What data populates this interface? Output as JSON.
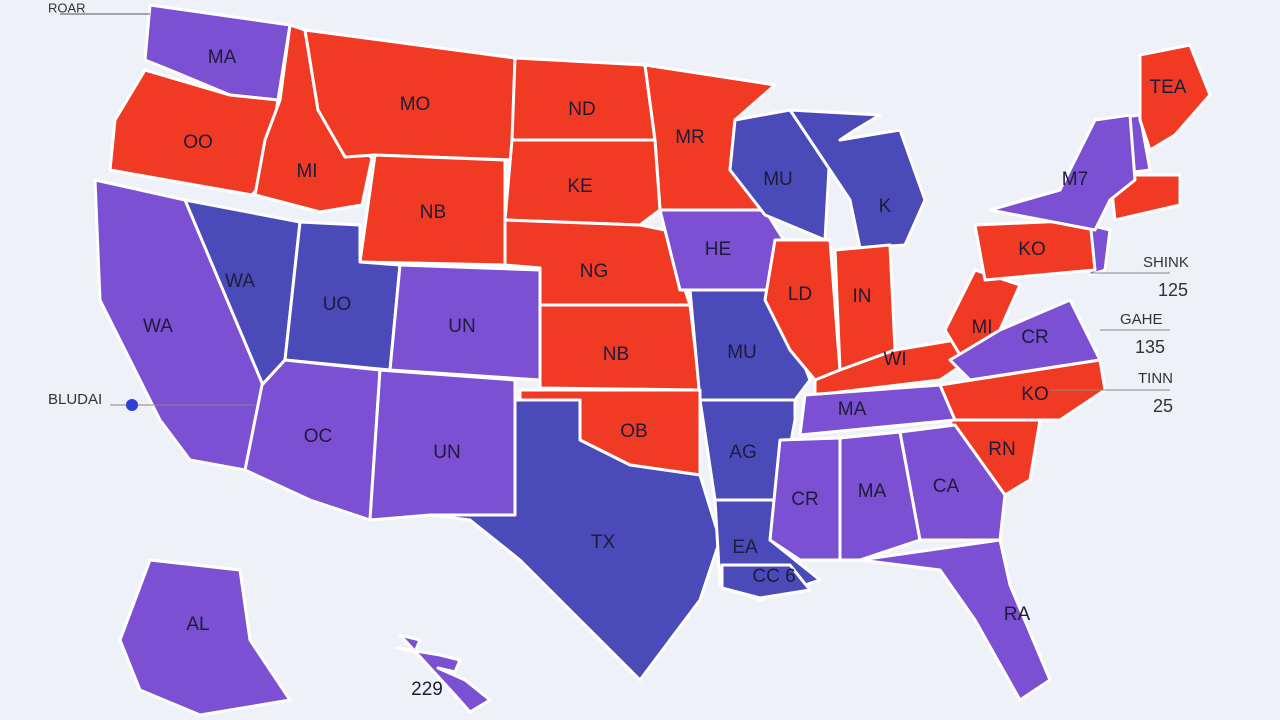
{
  "corner_label": "ROAR",
  "regions": [
    {
      "label": "MA"
    },
    {
      "label": "OO"
    },
    {
      "label": "MI"
    },
    {
      "label": "MO"
    },
    {
      "label": "ND"
    },
    {
      "label": "MR"
    },
    {
      "label": "KE"
    },
    {
      "label": "NB"
    },
    {
      "label": "NG"
    },
    {
      "label": "HE"
    },
    {
      "label": "MU"
    },
    {
      "label": "K"
    },
    {
      "label": "WA"
    },
    {
      "label": "UO"
    },
    {
      "label": "UN"
    },
    {
      "label": "NB"
    },
    {
      "label": "MU"
    },
    {
      "label": "LD"
    },
    {
      "label": "IN"
    },
    {
      "label": "WI"
    },
    {
      "label": "MI"
    },
    {
      "label": "KO"
    },
    {
      "label": "M7"
    },
    {
      "label": "TEA"
    },
    {
      "label": "CR"
    },
    {
      "label": "KO"
    },
    {
      "label": "RN"
    },
    {
      "label": "MA"
    },
    {
      "label": "WA"
    },
    {
      "label": "OC"
    },
    {
      "label": "UN"
    },
    {
      "label": "OB"
    },
    {
      "label": "TX"
    },
    {
      "label": "AG"
    },
    {
      "label": "EA"
    },
    {
      "label": "CC 6"
    },
    {
      "label": "CR"
    },
    {
      "label": "MA"
    },
    {
      "label": "CA"
    },
    {
      "label": "RA"
    },
    {
      "label": "AL"
    },
    {
      "label": "229"
    }
  ],
  "callouts": [
    {
      "label": "BLUDAI"
    },
    {
      "label": "SHINK",
      "value": "125"
    },
    {
      "label": "GAHE",
      "value": "135"
    },
    {
      "label": "TINN",
      "value": "25"
    }
  ]
}
